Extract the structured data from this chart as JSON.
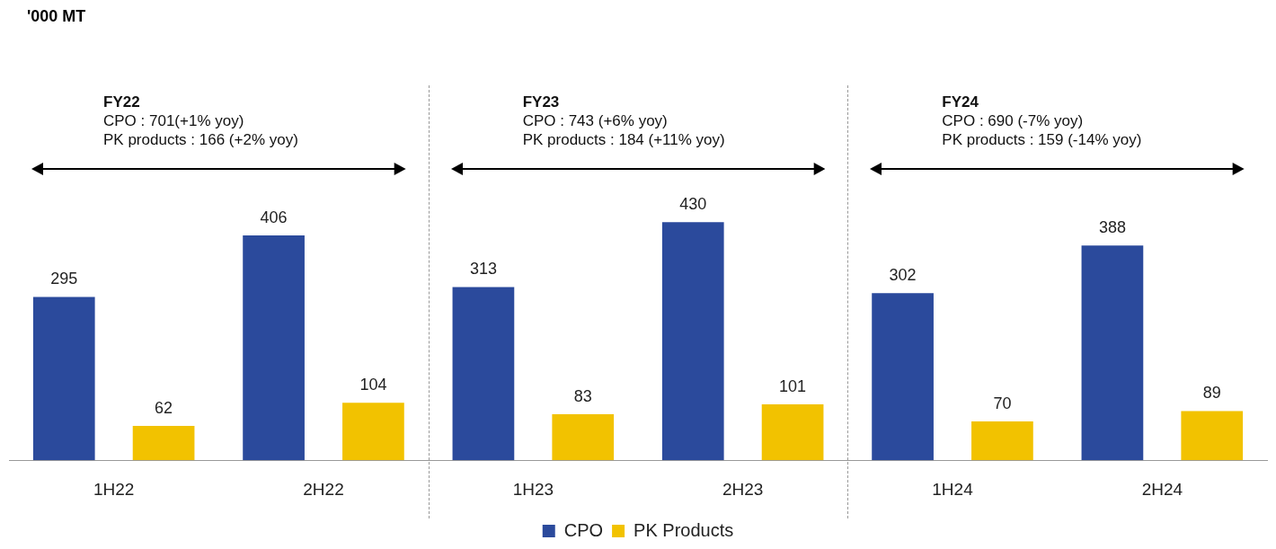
{
  "chart_data": {
    "type": "bar",
    "title": "'000 MT",
    "categories": [
      "1H22",
      "2H22",
      "1H23",
      "2H23",
      "1H24",
      "2H24"
    ],
    "series": [
      {
        "name": "CPO",
        "color": "#2b4a9c",
        "values": [
          295,
          406,
          313,
          430,
          302,
          388
        ]
      },
      {
        "name": "PK Products",
        "color": "#f2c200",
        "values": [
          62,
          104,
          83,
          101,
          70,
          89
        ]
      }
    ],
    "data_labels": true,
    "grid": false,
    "legend": "bottom",
    "annotations": [
      "FY22",
      "CPO : 701(+1% yoy)",
      "PK products : 166 (+2% yoy)",
      "FY23",
      "CPO : 743 (+6% yoy)",
      "PK products : 184 (+11% yoy)",
      "FY24",
      "CPO : 690 (-7% yoy)",
      "PK products : 159 (-14% yoy)"
    ]
  }
}
